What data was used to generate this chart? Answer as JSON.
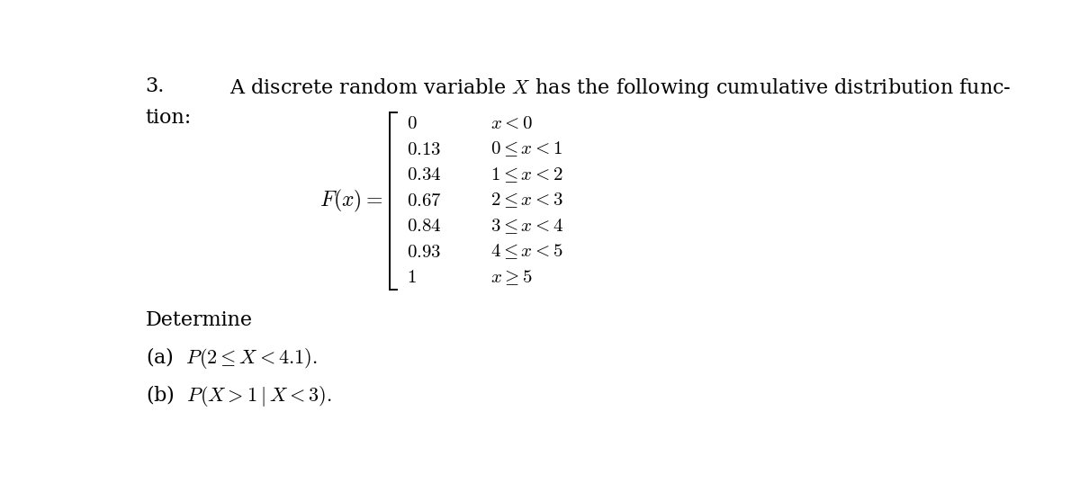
{
  "background_color": "#ffffff",
  "problem_number": "3.",
  "intro_line1": "A discrete random variable $X$ has the following cumulative distribution func-",
  "intro_line2": "tion:",
  "fx_label": "$F(x) =$",
  "cases": [
    {
      "value": "$0$",
      "condition": "$x < 0$"
    },
    {
      "value": "$0.13$",
      "condition": "$0 \\leq x < 1$"
    },
    {
      "value": "$0.34$",
      "condition": "$1 \\leq x < 2$"
    },
    {
      "value": "$0.67$",
      "condition": "$2 \\leq x < 3$"
    },
    {
      "value": "$0.84$",
      "condition": "$3 \\leq x < 4$"
    },
    {
      "value": "$0.93$",
      "condition": "$4 \\leq x < 5$"
    },
    {
      "value": "$1$",
      "condition": "$x \\geq 5$"
    }
  ],
  "determine_label": "Determine",
  "part_a": "(a)  $P(2 \\leq X < 4.1).$",
  "part_b": "(b)  $P(X > 1 \\mid X < 3).$",
  "font_size_main": 16,
  "font_size_cases": 15
}
